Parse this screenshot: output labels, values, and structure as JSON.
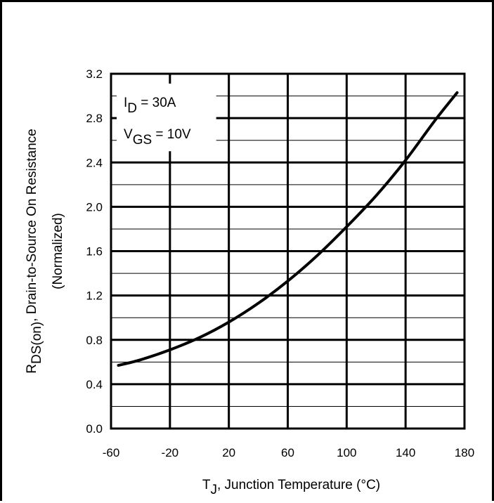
{
  "chart_data": {
    "type": "line",
    "title": "",
    "xlabel": {
      "main": "T",
      "sub": "J",
      "rest": ", Junction Temperature (°C)"
    },
    "ylabel": {
      "main": "R",
      "sub": "DS(on)",
      "rest": ", Drain-to-Source On Resistance",
      "line2": "(Normalized)"
    },
    "xlim": [
      -60,
      180
    ],
    "ylim": [
      0.0,
      3.2
    ],
    "x_ticks": [
      "-60",
      "-20",
      "20",
      "60",
      "100",
      "140",
      "180"
    ],
    "y_ticks": [
      "0.0",
      "0.4",
      "0.8",
      "1.2",
      "1.6",
      "2.0",
      "2.4",
      "2.8",
      "3.2"
    ],
    "x_major_step": 40,
    "y_major_step": 0.4,
    "y_minor_step": 0.2,
    "grid": true,
    "annotations": [
      {
        "main": "I",
        "sub": "D",
        "rest": " = 30A"
      },
      {
        "main": "V",
        "sub": "GS",
        "rest": " = 10V"
      }
    ],
    "series": [
      {
        "x": [
          -55,
          -40,
          -20,
          0,
          20,
          40,
          60,
          80,
          100,
          120,
          140,
          160,
          175
        ],
        "y": [
          0.57,
          0.62,
          0.71,
          0.82,
          0.96,
          1.13,
          1.33,
          1.56,
          1.82,
          2.1,
          2.42,
          2.78,
          3.03
        ]
      }
    ],
    "line_color": "#000000"
  }
}
